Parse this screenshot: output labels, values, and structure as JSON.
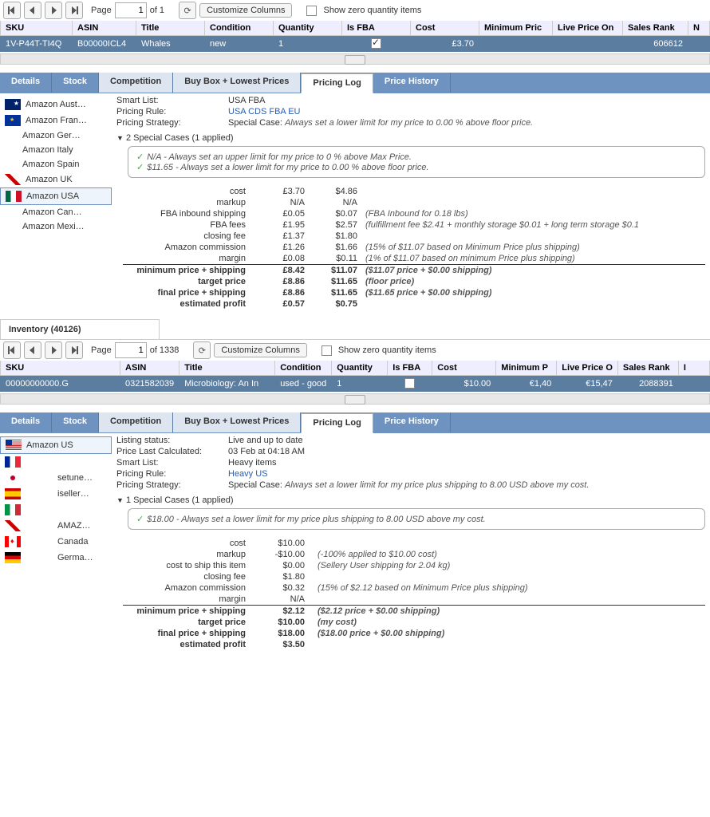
{
  "toolbar1": {
    "page_label": "Page",
    "page_value": "1",
    "of_label": "of 1",
    "customize": "Customize Columns",
    "show_zero": "Show zero quantity items"
  },
  "grid1": {
    "headers": [
      "SKU",
      "ASIN",
      "Title",
      "Condition",
      "Quantity",
      "Is FBA",
      "Cost",
      "Minimum Pric",
      "Live Price On",
      "Sales Rank",
      "N"
    ],
    "row": {
      "sku": "1V-P44T-TI4Q",
      "asin": "B00000ICL4",
      "title": "Whales",
      "condition": "new",
      "quantity": "1",
      "cost": "£3.70",
      "min": "",
      "live": "",
      "rank": "606612"
    }
  },
  "tabs1": [
    "Details",
    "Stock",
    "Competition",
    "Buy Box + Lowest Prices",
    "Pricing Log",
    "Price History"
  ],
  "mp1": [
    "Amazon Aust…",
    "Amazon Fran…",
    "Amazon Ger…",
    "Amazon Italy",
    "Amazon Spain",
    "Amazon UK",
    "Amazon USA",
    "Amazon Can…",
    "Amazon Mexi…"
  ],
  "detail1": {
    "smart_list_l": "Smart List:",
    "smart_list_v": "USA FBA",
    "rule_l": "Pricing Rule:",
    "rule_v": "USA CDS FBA EU",
    "strategy_l": "Pricing Strategy:",
    "strategy_v": "Special Case: ",
    "strategy_i": "Always set a lower limit for my price to 0.00 % above floor price.",
    "special_head": "2 Special Cases (1 applied)",
    "sp1": "N/A - Always set an upper limit for my price to 0 % above Max Price.",
    "sp2": "$11.65 - Always set a lower limit for my price to 0.00 % above floor price."
  },
  "costs1": [
    {
      "l": "cost",
      "c1": "£3.70",
      "c2": "$4.86",
      "n": ""
    },
    {
      "l": "markup",
      "c1": "N/A",
      "c2": "N/A",
      "n": ""
    },
    {
      "l": "FBA inbound shipping",
      "c1": "£0.05",
      "c2": "$0.07",
      "n": "(FBA Inbound for 0.18 lbs)"
    },
    {
      "l": "FBA fees",
      "c1": "£1.95",
      "c2": "$2.57",
      "n": "(fulfillment fee $2.41 + monthly storage $0.01 + long term storage $0.1"
    },
    {
      "l": "closing fee",
      "c1": "£1.37",
      "c2": "$1.80",
      "n": ""
    },
    {
      "l": "Amazon commission",
      "c1": "£1.26",
      "c2": "$1.66",
      "n": "(15% of $11.07 based on Minimum Price plus shipping)"
    },
    {
      "l": "margin",
      "c1": "£0.08",
      "c2": "$0.11",
      "n": "(1% of $11.07 based on minimum Price plus shipping)"
    },
    {
      "l": "minimum price + shipping",
      "c1": "£8.42",
      "c2": "$11.07",
      "n": "($11.07 price + $0.00 shipping)",
      "sep": true,
      "b": true
    },
    {
      "l": "target price",
      "c1": "£8.86",
      "c2": "$11.65",
      "n": "(floor price)",
      "b": true
    },
    {
      "l": "final price + shipping",
      "c1": "£8.86",
      "c2": "$11.65",
      "n": "($11.65 price + $0.00 shipping)",
      "b": true
    },
    {
      "l": "estimated profit",
      "c1": "£0.57",
      "c2": "$0.75",
      "n": "",
      "b": true
    }
  ],
  "inv_title": "Inventory (40126)",
  "toolbar2": {
    "page_label": "Page",
    "page_value": "1",
    "of_label": "of 1338",
    "customize": "Customize Columns",
    "show_zero": "Show zero quantity items"
  },
  "grid2": {
    "headers": [
      "SKU",
      "ASIN",
      "Title",
      "Condition",
      "Quantity",
      "Is FBA",
      "Cost",
      "Minimum P",
      "Live Price O",
      "Sales Rank",
      "I"
    ],
    "row": {
      "sku": "00000000000.G",
      "asin": "0321582039",
      "title": "Microbiology: An In",
      "condition": "used - good",
      "quantity": "1",
      "cost": "$10.00",
      "min": "€1,40",
      "live": "€15,47",
      "rank": "2088391"
    }
  },
  "tabs2": [
    "Details",
    "Stock",
    "Competition",
    "Buy Box + Lowest Prices",
    "Pricing Log",
    "Price History"
  ],
  "mp2": [
    "Amazon US",
    "",
    "setune…",
    "iseller…",
    "",
    "AMAZ…",
    "Canada",
    "Germa…"
  ],
  "detail2": {
    "ls_l": "Listing status:",
    "ls_v": "Live and up to date",
    "plc_l": "Price Last Calculated:",
    "plc_v": "03 Feb at 04:18 AM",
    "sl_l": "Smart List:",
    "sl_v": "Heavy items",
    "pr_l": "Pricing Rule:",
    "pr_v": "Heavy US",
    "ps_l": "Pricing Strategy:",
    "ps_v": "Special Case: ",
    "ps_i": "Always set a lower limit for my price plus shipping to 8.00 USD above my cost.",
    "special_head": "1 Special Cases (1 applied)",
    "sp1": "$18.00 - Always set a lower limit for my price plus shipping to 8.00 USD above my cost."
  },
  "costs2": [
    {
      "l": "cost",
      "c1": "$10.00",
      "n": ""
    },
    {
      "l": "markup",
      "c1": "-$10.00",
      "n": "(-100% applied to $10.00 cost)"
    },
    {
      "l": "cost to ship this item",
      "c1": "$0.00",
      "n": "(Sellery User shipping for 2.04 kg)"
    },
    {
      "l": "closing fee",
      "c1": "$1.80",
      "n": ""
    },
    {
      "l": "Amazon commission",
      "c1": "$0.32",
      "n": "(15% of $2.12 based on Minimum Price plus shipping)"
    },
    {
      "l": "margin",
      "c1": "N/A",
      "n": ""
    },
    {
      "l": "minimum price + shipping",
      "c1": "$2.12",
      "n": "($2.12 price + $0.00 shipping)",
      "sep": true,
      "b": true
    },
    {
      "l": "target price",
      "c1": "$10.00",
      "n": "(my cost)",
      "b": true
    },
    {
      "l": "final price + shipping",
      "c1": "$18.00",
      "n": "($18.00 price + $0.00 shipping)",
      "b": true
    },
    {
      "l": "estimated profit",
      "c1": "$3.50",
      "n": "",
      "b": true
    }
  ]
}
